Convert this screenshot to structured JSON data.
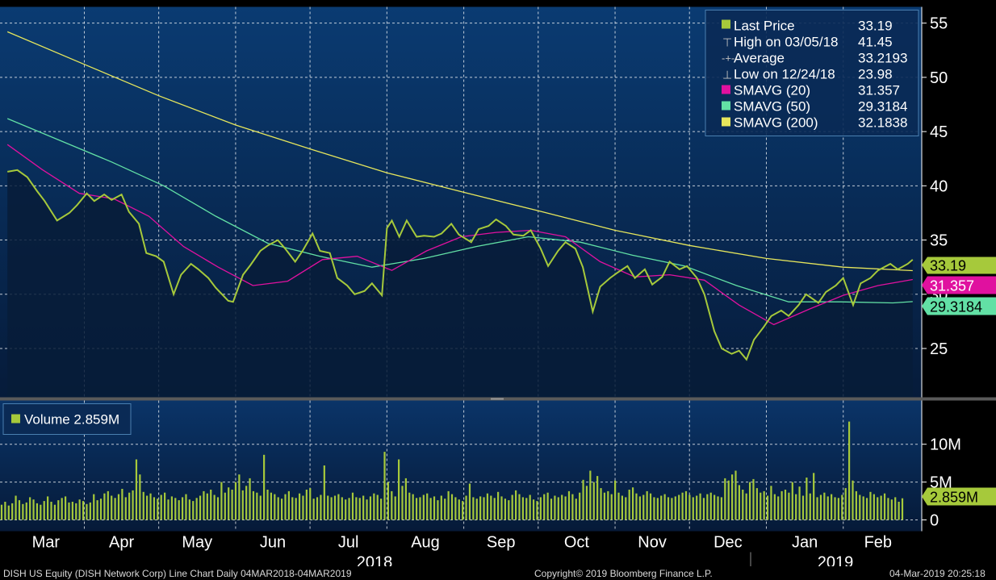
{
  "colors": {
    "last_price": "#a6c93b",
    "sma20": "#e0119f",
    "sma50": "#62e0a5",
    "sma200": "#e6e65c",
    "volume": "#a6c93b",
    "grid": "#ffffff",
    "panel_bg_top": "#0a3b72",
    "panel_bg_bottom": "#061b3a"
  },
  "legend": {
    "last_price_label": "Last Price",
    "last_price_value": "33.19",
    "high_label": "High on 03/05/18",
    "high_value": "41.45",
    "average_label": "Average",
    "average_value": "33.2193",
    "low_label": "Low on 12/24/18",
    "low_value": "23.98",
    "sma20_label": "SMAVG (20)",
    "sma20_value": "31.357",
    "sma50_label": "SMAVG (50)",
    "sma50_value": "29.3184",
    "sma200_label": "SMAVG (200)",
    "sma200_value": "32.1838"
  },
  "volume_legend": {
    "label": "Volume 2.859M"
  },
  "tags": {
    "last_price": "33.19",
    "sma20": "31.357",
    "sma50": "29.3184",
    "volume": "2.859M"
  },
  "footer": {
    "left": "DISH US Equity (DISH Network Corp) Line Chart  Daily 04MAR2018-04MAR2019",
    "center": "Copyright© 2019 Bloomberg Finance L.P.",
    "right": "04-Mar-2019 20:25:18"
  },
  "chart_data": [
    {
      "type": "line",
      "price_axis_ticks": [
        "55",
        "50",
        "45",
        "40",
        "35",
        "30",
        "25"
      ],
      "ylim": [
        20.5,
        56.5
      ],
      "x_month_labels": [
        "Mar",
        "Apr",
        "May",
        "Jun",
        "Jul",
        "Aug",
        "Sep",
        "Oct",
        "Nov",
        "Dec",
        "Jan",
        "Feb"
      ],
      "year_labels": [
        "2018",
        "2019"
      ],
      "series": [
        {
          "name": "Last Price",
          "points": [
            [
              "2018-03-01",
              41.3
            ],
            [
              "2018-03-05",
              41.45
            ],
            [
              "2018-03-09",
              40.8
            ],
            [
              "2018-03-13",
              39.5
            ],
            [
              "2018-03-16",
              38.6
            ],
            [
              "2018-03-21",
              36.8
            ],
            [
              "2018-03-26",
              37.5
            ],
            [
              "2018-03-29",
              38.2
            ],
            [
              "2018-04-02",
              39.3
            ],
            [
              "2018-04-05",
              38.6
            ],
            [
              "2018-04-09",
              39.2
            ],
            [
              "2018-04-12",
              38.7
            ],
            [
              "2018-04-16",
              39.2
            ],
            [
              "2018-04-19",
              37.6
            ],
            [
              "2018-04-23",
              36.5
            ],
            [
              "2018-04-26",
              33.8
            ],
            [
              "2018-04-30",
              33.5
            ],
            [
              "2018-05-03",
              33.0
            ],
            [
              "2018-05-07",
              30.0
            ],
            [
              "2018-05-10",
              31.8
            ],
            [
              "2018-05-14",
              32.8
            ],
            [
              "2018-05-17",
              32.3
            ],
            [
              "2018-05-21",
              31.5
            ],
            [
              "2018-05-24",
              30.6
            ],
            [
              "2018-05-29",
              29.4
            ],
            [
              "2018-05-31",
              29.3
            ],
            [
              "2018-06-04",
              31.8
            ],
            [
              "2018-06-07",
              32.7
            ],
            [
              "2018-06-11",
              34.0
            ],
            [
              "2018-06-14",
              34.5
            ],
            [
              "2018-06-18",
              35.0
            ],
            [
              "2018-06-21",
              34.2
            ],
            [
              "2018-06-25",
              33.0
            ],
            [
              "2018-06-28",
              34.0
            ],
            [
              "2018-07-02",
              35.6
            ],
            [
              "2018-07-05",
              34.0
            ],
            [
              "2018-07-09",
              33.8
            ],
            [
              "2018-07-12",
              31.5
            ],
            [
              "2018-07-16",
              30.8
            ],
            [
              "2018-07-19",
              30.0
            ],
            [
              "2018-07-23",
              30.3
            ],
            [
              "2018-07-26",
              31.0
            ],
            [
              "2018-07-30",
              29.9
            ],
            [
              "2018-08-01",
              36.1
            ],
            [
              "2018-08-03",
              36.8
            ],
            [
              "2018-08-06",
              35.3
            ],
            [
              "2018-08-09",
              36.8
            ],
            [
              "2018-08-13",
              35.3
            ],
            [
              "2018-08-16",
              35.4
            ],
            [
              "2018-08-20",
              35.3
            ],
            [
              "2018-08-23",
              35.6
            ],
            [
              "2018-08-27",
              36.5
            ],
            [
              "2018-08-30",
              35.5
            ],
            [
              "2018-09-04",
              34.8
            ],
            [
              "2018-09-07",
              36.0
            ],
            [
              "2018-09-11",
              36.3
            ],
            [
              "2018-09-14",
              36.9
            ],
            [
              "2018-09-18",
              36.3
            ],
            [
              "2018-09-21",
              35.5
            ],
            [
              "2018-09-25",
              35.4
            ],
            [
              "2018-09-28",
              35.9
            ],
            [
              "2018-10-02",
              34.2
            ],
            [
              "2018-10-05",
              32.6
            ],
            [
              "2018-10-09",
              34.0
            ],
            [
              "2018-10-12",
              34.8
            ],
            [
              "2018-10-16",
              34.2
            ],
            [
              "2018-10-19",
              32.5
            ],
            [
              "2018-10-23",
              28.4
            ],
            [
              "2018-10-26",
              30.7
            ],
            [
              "2018-10-30",
              31.5
            ],
            [
              "2018-11-02",
              32.0
            ],
            [
              "2018-11-06",
              32.6
            ],
            [
              "2018-11-09",
              31.5
            ],
            [
              "2018-11-13",
              32.3
            ],
            [
              "2018-11-16",
              30.9
            ],
            [
              "2018-11-20",
              31.6
            ],
            [
              "2018-11-23",
              33.0
            ],
            [
              "2018-11-27",
              32.3
            ],
            [
              "2018-11-30",
              32.6
            ],
            [
              "2018-12-04",
              31.5
            ],
            [
              "2018-12-07",
              30.0
            ],
            [
              "2018-12-11",
              26.6
            ],
            [
              "2018-12-14",
              25.0
            ],
            [
              "2018-12-18",
              24.5
            ],
            [
              "2018-12-21",
              24.8
            ],
            [
              "2018-12-24",
              23.98
            ],
            [
              "2018-12-27",
              25.8
            ],
            [
              "2018-12-31",
              27.0
            ],
            [
              "2019-01-03",
              28.0
            ],
            [
              "2019-01-07",
              28.5
            ],
            [
              "2019-01-10",
              28.0
            ],
            [
              "2019-01-14",
              29.0
            ],
            [
              "2019-01-17",
              30.0
            ],
            [
              "2019-01-22",
              29.2
            ],
            [
              "2019-01-25",
              30.2
            ],
            [
              "2019-01-29",
              30.8
            ],
            [
              "2019-02-01",
              31.5
            ],
            [
              "2019-02-05",
              29.0
            ],
            [
              "2019-02-08",
              31.0
            ],
            [
              "2019-02-12",
              31.5
            ],
            [
              "2019-02-15",
              32.2
            ],
            [
              "2019-02-20",
              32.8
            ],
            [
              "2019-02-23",
              32.3
            ],
            [
              "2019-02-27",
              32.8
            ],
            [
              "2019-03-01",
              33.19
            ]
          ]
        },
        {
          "name": "SMAVG (20)",
          "points": [
            [
              "2018-03-01",
              43.8
            ],
            [
              "2018-03-15",
              41.5
            ],
            [
              "2018-03-30",
              39.3
            ],
            [
              "2018-04-13",
              38.8
            ],
            [
              "2018-04-27",
              37.2
            ],
            [
              "2018-05-11",
              34.4
            ],
            [
              "2018-05-25",
              32.5
            ],
            [
              "2018-06-08",
              30.8
            ],
            [
              "2018-06-22",
              31.2
            ],
            [
              "2018-07-06",
              33.2
            ],
            [
              "2018-07-20",
              33.5
            ],
            [
              "2018-08-03",
              32.2
            ],
            [
              "2018-08-17",
              34.0
            ],
            [
              "2018-08-31",
              35.3
            ],
            [
              "2018-09-14",
              35.7
            ],
            [
              "2018-09-28",
              35.9
            ],
            [
              "2018-10-12",
              35.3
            ],
            [
              "2018-10-26",
              33.0
            ],
            [
              "2018-11-09",
              31.6
            ],
            [
              "2018-11-23",
              31.8
            ],
            [
              "2018-12-07",
              31.3
            ],
            [
              "2018-12-21",
              29.0
            ],
            [
              "2019-01-04",
              27.2
            ],
            [
              "2019-01-18",
              28.6
            ],
            [
              "2019-02-01",
              29.9
            ],
            [
              "2019-02-15",
              30.8
            ],
            [
              "2019-03-01",
              31.357
            ]
          ]
        },
        {
          "name": "SMAVG (50)",
          "points": [
            [
              "2018-03-01",
              46.2
            ],
            [
              "2018-03-22",
              44.2
            ],
            [
              "2018-04-12",
              42.2
            ],
            [
              "2018-05-03",
              40.0
            ],
            [
              "2018-05-24",
              37.2
            ],
            [
              "2018-06-14",
              34.7
            ],
            [
              "2018-07-05",
              33.5
            ],
            [
              "2018-07-26",
              32.5
            ],
            [
              "2018-08-16",
              33.3
            ],
            [
              "2018-09-06",
              34.4
            ],
            [
              "2018-09-27",
              35.3
            ],
            [
              "2018-10-18",
              34.8
            ],
            [
              "2018-11-08",
              33.6
            ],
            [
              "2018-11-29",
              32.6
            ],
            [
              "2018-12-20",
              30.8
            ],
            [
              "2019-01-10",
              29.3
            ],
            [
              "2019-01-31",
              29.3
            ],
            [
              "2019-02-21",
              29.2
            ],
            [
              "2019-03-01",
              29.3184
            ]
          ]
        },
        {
          "name": "SMAVG (200)",
          "points": [
            [
              "2018-03-01",
              54.2
            ],
            [
              "2018-04-01",
              51.2
            ],
            [
              "2018-05-01",
              48.3
            ],
            [
              "2018-06-01",
              45.6
            ],
            [
              "2018-07-01",
              43.4
            ],
            [
              "2018-08-01",
              41.2
            ],
            [
              "2018-09-01",
              39.4
            ],
            [
              "2018-10-01",
              37.7
            ],
            [
              "2018-11-01",
              35.9
            ],
            [
              "2018-12-01",
              34.5
            ],
            [
              "2019-01-01",
              33.3
            ],
            [
              "2019-02-01",
              32.5
            ],
            [
              "2019-03-01",
              32.18
            ]
          ]
        }
      ]
    },
    {
      "type": "bar",
      "name": "Volume",
      "unit": "M",
      "volume_axis_ticks": [
        "10M",
        "5M",
        "0"
      ],
      "ylim": [
        0,
        14.5
      ],
      "values": [
        2.0,
        2.4,
        1.9,
        2.2,
        3.2,
        2.6,
        2.1,
        2.3,
        3.0,
        2.7,
        2.2,
        2.0,
        2.5,
        3.1,
        2.4,
        2.0,
        2.6,
        2.9,
        3.1,
        2.3,
        2.4,
        2.2,
        2.7,
        2.5,
        2.1,
        2.3,
        3.4,
        2.6,
        2.8,
        3.5,
        3.8,
        3.2,
        2.9,
        3.4,
        4.1,
        3.0,
        3.6,
        3.9,
        8.0,
        6.0,
        3.7,
        3.2,
        3.5,
        3.0,
        2.8,
        3.3,
        3.6,
        2.7,
        3.1,
        2.9,
        2.6,
        3.0,
        3.4,
        2.7,
        2.5,
        2.9,
        3.2,
        3.8,
        3.5,
        4.0,
        3.3,
        3.0,
        5.0,
        3.6,
        4.3,
        4.0,
        5.0,
        6.0,
        3.9,
        4.5,
        5.5,
        3.8,
        3.6,
        3.2,
        8.6,
        4.0,
        3.6,
        3.4,
        3.0,
        2.8,
        3.4,
        3.8,
        3.0,
        2.9,
        3.5,
        3.2,
        4.0,
        4.2,
        2.8,
        3.0,
        3.3,
        7.2,
        3.2,
        3.0,
        3.2,
        3.4,
        3.0,
        2.7,
        2.9,
        3.6,
        3.0,
        2.9,
        3.2,
        2.7,
        3.1,
        3.5,
        3.3,
        2.8,
        9.0,
        5.0,
        3.8,
        3.1,
        8.0,
        4.5,
        5.5,
        3.6,
        3.4,
        2.9,
        3.0,
        3.3,
        3.5,
        2.9,
        3.1,
        2.6,
        3.2,
        2.8,
        3.8,
        3.4,
        3.0,
        2.7,
        2.5,
        3.2,
        4.8,
        3.0,
        2.8,
        3.1,
        3.0,
        3.5,
        3.2,
        2.9,
        3.7,
        3.1,
        2.8,
        2.6,
        3.3,
        3.9,
        3.4,
        3.0,
        2.9,
        3.3,
        2.7,
        2.5,
        3.0,
        3.4,
        3.6,
        2.8,
        3.2,
        3.0,
        3.3,
        3.1,
        3.8,
        3.4,
        2.8,
        3.6,
        5.3,
        4.5,
        6.5,
        5.0,
        5.8,
        4.2,
        3.6,
        3.8,
        3.4,
        5.2,
        3.6,
        3.2,
        3.0,
        4.0,
        4.3,
        3.5,
        3.1,
        3.3,
        3.8,
        3.5,
        3.0,
        2.9,
        3.2,
        3.4,
        3.0,
        2.9,
        3.1,
        3.3,
        3.6,
        3.8,
        3.3,
        3.0,
        3.2,
        3.5,
        2.9,
        3.4,
        3.6,
        3.3,
        3.1,
        3.0,
        5.5,
        5.2,
        6.0,
        6.5,
        4.6,
        4.0,
        3.5,
        5.0,
        5.4,
        4.2,
        3.6,
        3.8,
        3.2,
        4.5,
        3.4,
        3.1,
        3.8,
        4.0,
        3.6,
        5.0,
        3.4,
        4.4,
        3.2,
        5.6,
        3.5,
        6.2,
        3.0,
        3.3,
        3.6,
        3.1,
        3.4,
        3.0,
        2.9,
        3.3,
        4.2,
        13.0,
        5.2,
        3.8,
        3.3,
        3.1,
        2.9,
        3.7,
        3.4,
        3.0,
        3.2,
        3.5,
        2.9,
        2.7,
        3.0,
        2.4,
        2.859
      ]
    }
  ]
}
